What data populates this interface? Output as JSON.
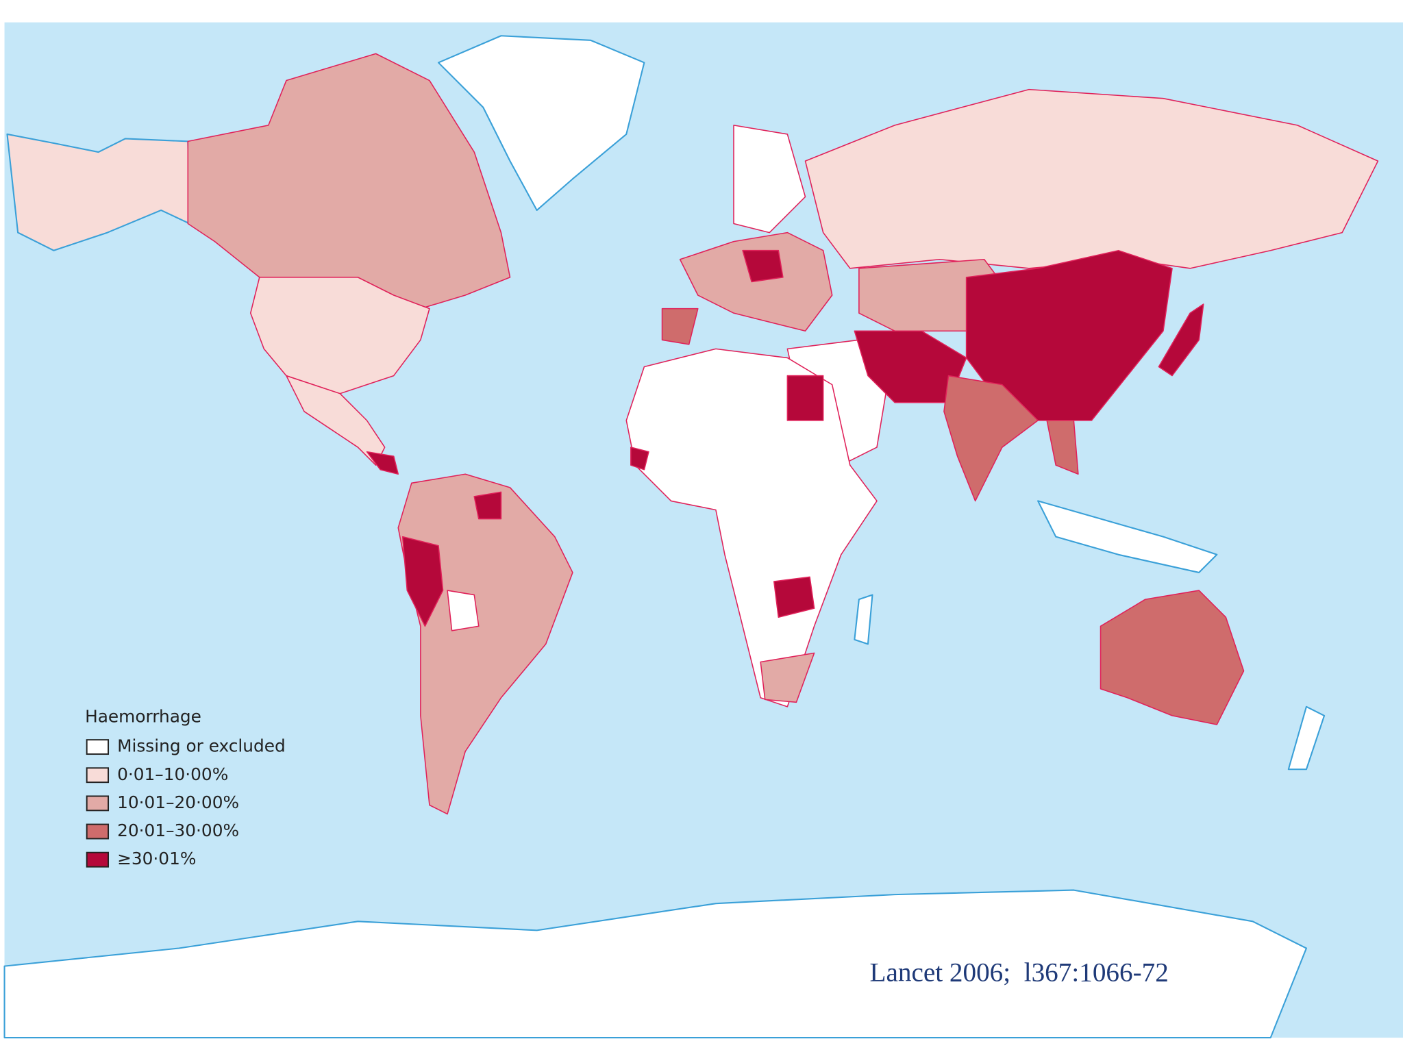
{
  "legend": {
    "title": "Haemorrhage",
    "items": [
      "Missing or excluded",
      "0·01–10·00%",
      "10·01–20·00%",
      "20·01–30·00%",
      "≥30·01%"
    ]
  },
  "citation": "Lancet 2006;  l367:1066-72"
}
